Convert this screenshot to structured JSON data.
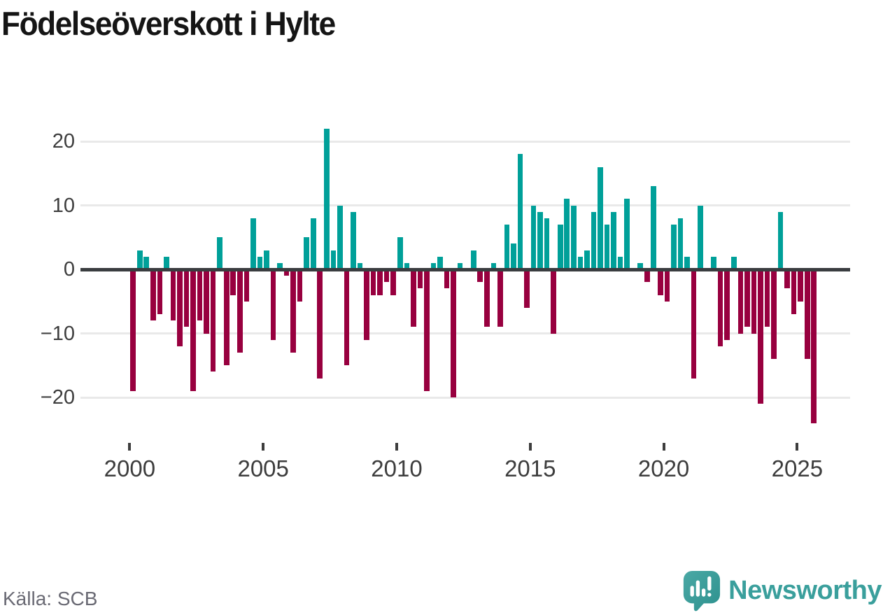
{
  "title": "Födelseöverskott i Hylte",
  "source": "Källa: SCB",
  "branding": {
    "name": "Newsworthy",
    "color": "#3a9f9c"
  },
  "chart_data": {
    "type": "bar",
    "title": "Födelseöverskott i Hylte",
    "frequency": "quarterly",
    "start_quarter": "2000Q1",
    "end_quarter": "2025Q3",
    "start_year": 2000,
    "xlabel": "",
    "ylabel": "",
    "ylim": [
      -25,
      23
    ],
    "grid": "horizontal",
    "y_ticks": [
      20,
      10,
      0,
      -10,
      -20
    ],
    "x_tick_years": [
      2000,
      2005,
      2010,
      2015,
      2020,
      2025
    ],
    "positive_color": "#00a099",
    "negative_color": "#98003f",
    "values": [
      -19,
      3,
      2,
      -8,
      -7,
      2,
      -8,
      -12,
      -9,
      -19,
      -8,
      -10,
      -16,
      5,
      -15,
      -4,
      -13,
      -5,
      8,
      2,
      3,
      -11,
      1,
      -1,
      -13,
      -5,
      5,
      8,
      -17,
      22,
      3,
      10,
      -15,
      9,
      1,
      -11,
      -4,
      -4,
      -2,
      -4,
      5,
      1,
      -9,
      -3,
      -19,
      1,
      2,
      -3,
      -20,
      1,
      0,
      3,
      -2,
      -9,
      1,
      -9,
      7,
      4,
      18,
      -6,
      10,
      9,
      8,
      -10,
      7,
      11,
      10,
      2,
      3,
      9,
      16,
      7,
      9,
      2,
      11,
      0,
      1,
      -2,
      13,
      -4,
      -5,
      7,
      8,
      2,
      -17,
      10,
      0,
      2,
      -12,
      -11,
      2,
      -10,
      -9,
      -10,
      -21,
      -9,
      -14,
      9,
      -3,
      -7,
      -5,
      -14,
      -24
    ]
  }
}
